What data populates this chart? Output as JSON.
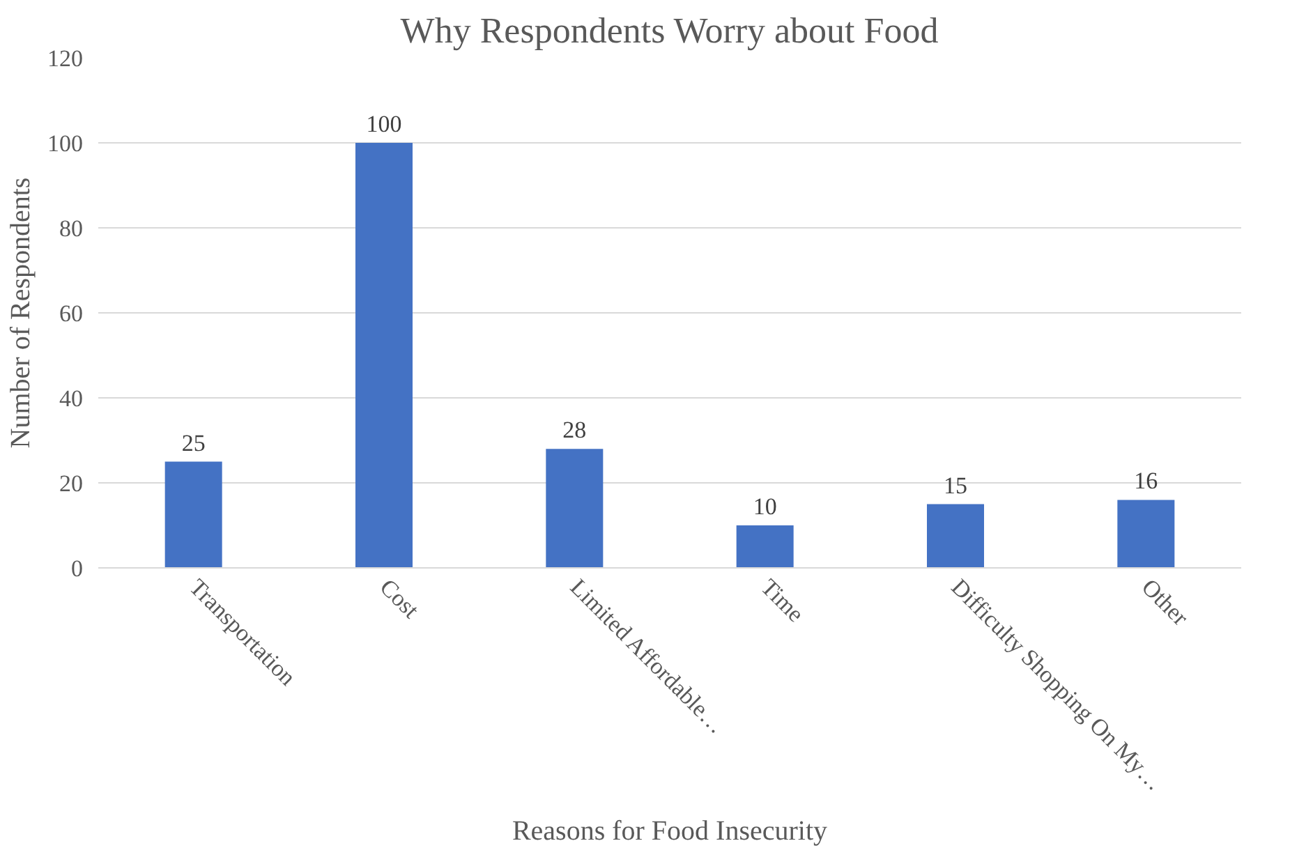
{
  "chart_data": {
    "type": "bar",
    "title": "Why Respondents Worry about Food",
    "xlabel": "Reasons for Food Insecurity",
    "ylabel": "Number of Respondents",
    "categories": [
      "Transportation",
      "Cost",
      "Limited Affordable…",
      "Time",
      "Difficulty Shopping On My…",
      "Other"
    ],
    "values": [
      25,
      100,
      28,
      10,
      15,
      16
    ],
    "color": "#4472c4",
    "ylim": [
      0,
      120
    ],
    "yticks": [
      0,
      20,
      40,
      60,
      80,
      100,
      120
    ],
    "grid": "y",
    "data_labels": true
  }
}
